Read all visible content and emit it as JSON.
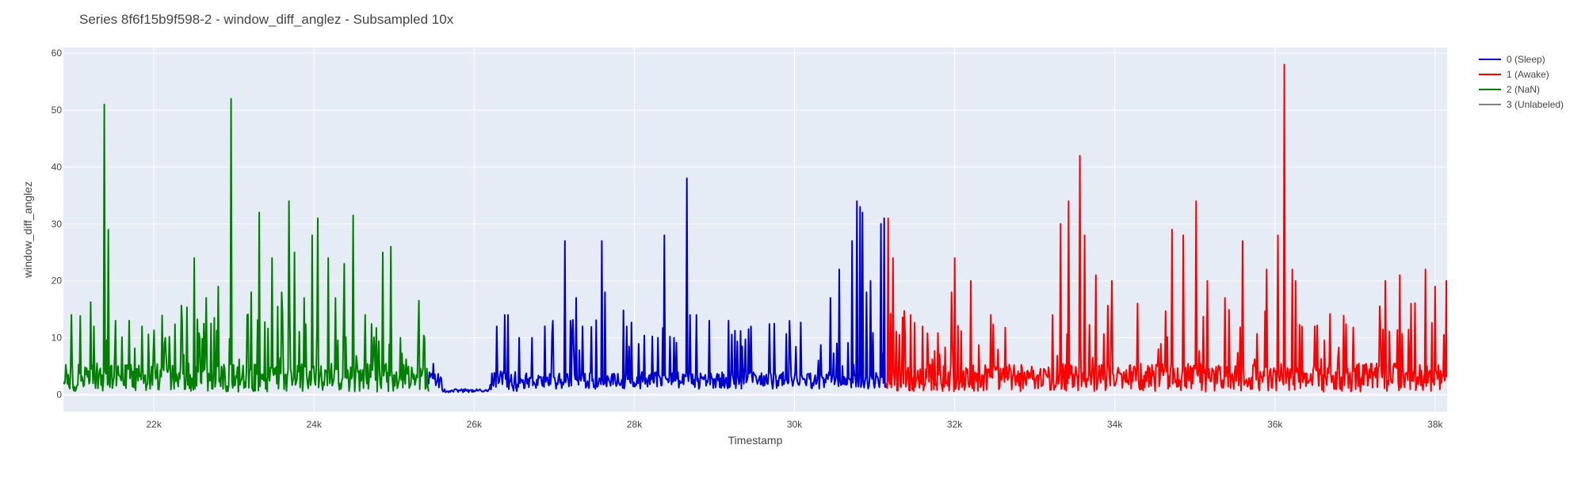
{
  "chart_data": {
    "type": "line",
    "title": "Series 8f6f15b9f598-2 - window_diff_anglez - Subsampled 10x",
    "xlabel": "Timestamp",
    "ylabel": "window_diff_anglez",
    "xlim": [
      20870,
      38150
    ],
    "ylim": [
      -3,
      61
    ],
    "x_ticks": [
      22000,
      24000,
      26000,
      28000,
      30000,
      32000,
      34000,
      36000,
      38000
    ],
    "x_tick_labels": [
      "22k",
      "24k",
      "26k",
      "28k",
      "30k",
      "32k",
      "34k",
      "36k",
      "38k"
    ],
    "y_ticks": [
      0,
      10,
      20,
      30,
      40,
      50,
      60
    ],
    "y_tick_labels": [
      "0",
      "10",
      "20",
      "30",
      "40",
      "50",
      "60"
    ],
    "grid": true,
    "legend_position": "right",
    "plot_background": "#e5ecf6",
    "series": [
      {
        "name": "0 (Sleep)",
        "color": "#0000cc",
        "x_range": [
          25430,
          31150
        ],
        "points": 572,
        "seed": 101,
        "base": 2.5,
        "noise": 1.5,
        "spike_rate": 0.07,
        "regimes": [
          [
            25600,
            26200,
            0.7,
            0.3
          ],
          [
            26200,
            26600,
            2.5,
            2.0
          ]
        ],
        "peaks": [
          [
            26280,
            12
          ],
          [
            26380,
            14
          ],
          [
            26420,
            14
          ],
          [
            26560,
            10
          ],
          [
            26720,
            10
          ],
          [
            27130,
            27
          ],
          [
            27200,
            13
          ],
          [
            27270,
            17
          ],
          [
            27350,
            12
          ],
          [
            27590,
            27
          ],
          [
            27630,
            18
          ],
          [
            27900,
            12
          ],
          [
            28300,
            10
          ],
          [
            28380,
            28
          ],
          [
            28500,
            10
          ],
          [
            28660,
            38
          ],
          [
            28700,
            14
          ],
          [
            28780,
            14
          ],
          [
            28940,
            13
          ],
          [
            29180,
            13
          ],
          [
            29380,
            5
          ],
          [
            29700,
            4
          ],
          [
            30300,
            6
          ],
          [
            30450,
            17
          ],
          [
            30560,
            22
          ],
          [
            30720,
            27
          ],
          [
            30780,
            34
          ],
          [
            30820,
            33
          ],
          [
            30850,
            32
          ],
          [
            30900,
            18
          ],
          [
            30950,
            20
          ],
          [
            31080,
            30
          ],
          [
            31120,
            31
          ]
        ]
      },
      {
        "name": "1 (Awake)",
        "color": "#ff0000",
        "x_range": [
          31150,
          38150
        ],
        "points": 700,
        "seed": 202,
        "base": 3.0,
        "noise": 2.5,
        "spike_rate": 0.11,
        "peaks": [
          [
            31170,
            31
          ],
          [
            31230,
            24
          ],
          [
            31450,
            14
          ],
          [
            31600,
            12
          ],
          [
            31960,
            18
          ],
          [
            32000,
            24
          ],
          [
            32200,
            20
          ],
          [
            32450,
            14
          ],
          [
            33320,
            30
          ],
          [
            33420,
            34
          ],
          [
            33560,
            42
          ],
          [
            33620,
            28
          ],
          [
            33760,
            21
          ],
          [
            33960,
            20
          ],
          [
            34280,
            16
          ],
          [
            34720,
            29
          ],
          [
            34860,
            28
          ],
          [
            35020,
            34
          ],
          [
            35160,
            20
          ],
          [
            35380,
            17
          ],
          [
            35600,
            27
          ],
          [
            35900,
            22
          ],
          [
            36040,
            28
          ],
          [
            36120,
            58
          ],
          [
            36220,
            22
          ],
          [
            36260,
            20
          ],
          [
            36500,
            12
          ],
          [
            37380,
            20
          ],
          [
            37560,
            21
          ],
          [
            37700,
            16
          ],
          [
            37880,
            22
          ],
          [
            38000,
            19
          ],
          [
            38140,
            20
          ]
        ]
      },
      {
        "name": "2 (NaN)",
        "color": "#008000",
        "x_range": [
          20870,
          25430
        ],
        "points": 456,
        "seed": 303,
        "base": 3.0,
        "noise": 2.5,
        "spike_rate": 0.14,
        "peaks": [
          [
            20970,
            14
          ],
          [
            21250,
            12
          ],
          [
            21380,
            51
          ],
          [
            21430,
            29
          ],
          [
            21520,
            13
          ],
          [
            21690,
            13
          ],
          [
            21850,
            12
          ],
          [
            22140,
            10
          ],
          [
            22370,
            7
          ],
          [
            22500,
            24
          ],
          [
            22650,
            17
          ],
          [
            22800,
            19
          ],
          [
            22960,
            52
          ],
          [
            23170,
            14
          ],
          [
            23220,
            18
          ],
          [
            23320,
            32
          ],
          [
            23480,
            24
          ],
          [
            23600,
            18
          ],
          [
            23690,
            34
          ],
          [
            23760,
            25
          ],
          [
            23880,
            17
          ],
          [
            23980,
            28
          ],
          [
            24050,
            31
          ],
          [
            24180,
            24
          ],
          [
            24270,
            17
          ],
          [
            24380,
            23
          ],
          [
            24490,
            31.5
          ],
          [
            24640,
            14
          ],
          [
            24860,
            25
          ],
          [
            24960,
            26
          ],
          [
            25080,
            10
          ],
          [
            25300,
            10
          ],
          [
            25380,
            10
          ]
        ]
      },
      {
        "name": "3 (Unlabeled)",
        "color": "#808080",
        "points": 0
      }
    ]
  }
}
